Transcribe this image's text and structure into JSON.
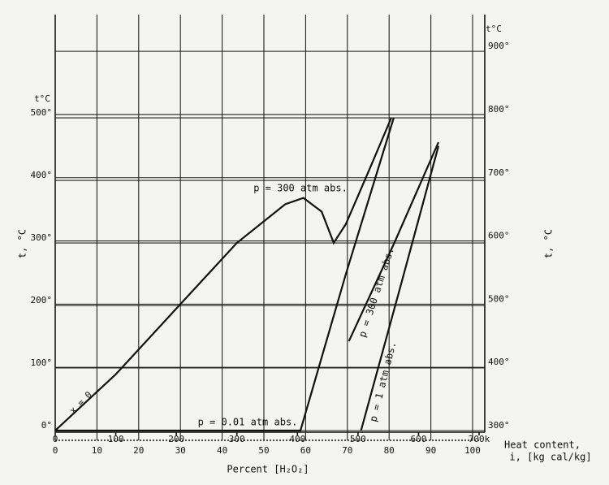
{
  "chart_data": {
    "type": "line",
    "ylabel": "t, °C",
    "ylabel_top": "t°C",
    "y2label": "t, °C",
    "y2label_top": "t°C",
    "xlabel": [
      "Heat content,",
      "i, [kg cal/kg]"
    ],
    "x2label": "Percent [H₂O₂]",
    "xlim": [
      0,
      700
    ],
    "xticks": [
      0,
      100,
      200,
      300,
      400,
      500,
      600,
      {
        "value": 700,
        "label": "700k"
      }
    ],
    "x2lim": [
      0,
      100
    ],
    "x2ticks": [
      0,
      10,
      20,
      30,
      40,
      50,
      60,
      70,
      80,
      90,
      100
    ],
    "ylim": [
      0,
      665
    ],
    "yticks": [
      {
        "value": 0,
        "label": "0°"
      },
      {
        "value": 100,
        "label": "100°"
      },
      {
        "value": 200,
        "label": "200°"
      },
      {
        "value": 300,
        "label": "300°"
      },
      {
        "value": 400,
        "label": "400°"
      },
      {
        "value": 500,
        "label": "500°"
      }
    ],
    "y2lim": [
      300,
      958
    ],
    "y2ticks": [
      {
        "value": 300,
        "label": "300°"
      },
      {
        "value": 400,
        "label": "400°"
      },
      {
        "value": 500,
        "label": "500°"
      },
      {
        "value": 600,
        "label": "600°"
      },
      {
        "value": 700,
        "label": "700°"
      },
      {
        "value": 800,
        "label": "800°"
      },
      {
        "value": 900,
        "label": "900°"
      }
    ],
    "grid": true,
    "series": [
      {
        "name": "p = 300 atm abs.",
        "color": "#111111",
        "x": [
          0,
          100,
          200,
          300,
          380,
          410,
          440,
          460,
          480,
          520,
          555
        ],
        "values": [
          0,
          90,
          195,
          300,
          362,
          372,
          350,
          300,
          330,
          420,
          500
        ]
      },
      {
        "name": "p = 0.01 atm abs.",
        "color": "#111111",
        "x": [
          0,
          405,
          480,
          559
        ],
        "values": [
          0,
          0,
          250,
          500
        ]
      },
      {
        "name": "p = 300 atm abs.",
        "color": "#111111",
        "x": [
          485,
          560,
          633
        ],
        "values": [
          143,
          300,
          461
        ]
      },
      {
        "name": "p = 1 atm abs.",
        "color": "#111111",
        "x": [
          505,
          570,
          633
        ],
        "values": [
          0,
          230,
          455
        ]
      }
    ],
    "annotations": [
      "x = 0"
    ]
  }
}
